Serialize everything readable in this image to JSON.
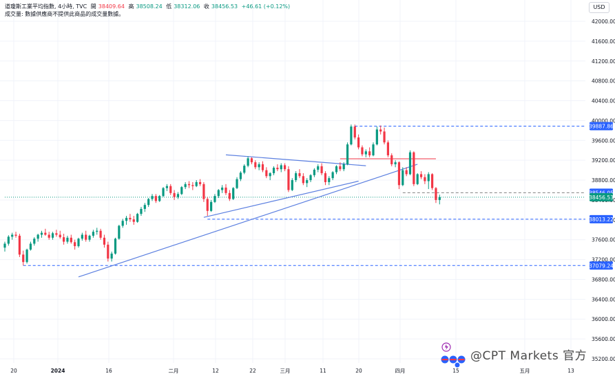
{
  "header": {
    "line1_prefix": "道瓊斯工業平均指數, 4小時, TVC",
    "open_label": "開",
    "open": "38409.64",
    "high_label": "高",
    "high": "38508.24",
    "low_label": "低",
    "low": "38312.06",
    "close_label": "收",
    "close": "38456.53",
    "change": "+46.61 (+0.12%)",
    "line2": "成交量: 數據供應商不提供此商品的成交量數據。"
  },
  "currency": "USD",
  "watermark": "@CPT Markets 官方",
  "colors": {
    "up": "#089981",
    "down": "#f23645",
    "trendline": "#5b7fe0",
    "level": "#2962ff",
    "resistance": "#f23645",
    "grid": "#f0f3fa",
    "axis_text": "#131722"
  },
  "chart_data": {
    "type": "candlestick",
    "y_axis": {
      "range": [
        35200,
        42200
      ],
      "ticks": [
        "42000.00",
        "41600.00",
        "41200.00",
        "40800.00",
        "40400.00",
        "40000.00",
        "39600.00",
        "39200.00",
        "38800.00",
        "38400.00",
        "38000.00",
        "37600.00",
        "37200.00",
        "36800.00",
        "36400.00",
        "36000.00",
        "35600.00",
        "35200.00"
      ]
    },
    "x_axis": {
      "ticks": [
        "20",
        "2024",
        "16",
        "二月",
        "12",
        "22",
        "三月",
        "11",
        "20",
        "四月",
        "15",
        "五月",
        "13"
      ]
    },
    "price_labels": [
      {
        "value": 39887.86,
        "text": "39887.86",
        "color": "#2962ff"
      },
      {
        "value": 38546.05,
        "text": "38546.05",
        "color": "#2962ff"
      },
      {
        "value": 38456.53,
        "text": "38456.53",
        "color": "#089981"
      },
      {
        "value": 38013.22,
        "text": "38013.22",
        "color": "#2962ff"
      },
      {
        "value": 37079.24,
        "text": "37079.24",
        "color": "#2962ff"
      }
    ],
    "horizontal_lines": [
      {
        "value": 39887.86,
        "style": "dashed",
        "color": "#2962ff",
        "from_index": 95
      },
      {
        "value": 38546.05,
        "style": "dashed",
        "color": "#808080",
        "from_index": 108
      },
      {
        "value": 38456.53,
        "style": "dotted",
        "color": "#089981",
        "from_index": 0
      },
      {
        "value": 38013.22,
        "style": "dashed",
        "color": "#2962ff",
        "from_index": 55
      },
      {
        "value": 37079.24,
        "style": "dashed",
        "color": "#2962ff",
        "from_index": 5
      },
      {
        "value": 39230,
        "style": "solid",
        "color": "#f23645",
        "from_index": 91,
        "to_index": 117
      }
    ],
    "trendlines": [
      {
        "from": [
          20,
          36850
        ],
        "to": [
          112,
          39120
        ],
        "color": "#5b7fe0"
      },
      {
        "from": [
          54,
          38050
        ],
        "to": [
          96,
          38780
        ],
        "color": "#5b7fe0"
      },
      {
        "from": [
          60,
          39310
        ],
        "to": [
          98,
          39090
        ],
        "color": "#5b7fe0"
      }
    ],
    "candles": [
      [
        37440,
        37560,
        37360,
        37520
      ],
      [
        37520,
        37690,
        37480,
        37660
      ],
      [
        37660,
        37740,
        37600,
        37700
      ],
      [
        37700,
        37760,
        37640,
        37680
      ],
      [
        37680,
        37720,
        37250,
        37300
      ],
      [
        37300,
        37380,
        37080,
        37150
      ],
      [
        37150,
        37420,
        37120,
        37400
      ],
      [
        37400,
        37560,
        37380,
        37520
      ],
      [
        37520,
        37650,
        37480,
        37620
      ],
      [
        37620,
        37720,
        37560,
        37700
      ],
      [
        37700,
        37780,
        37640,
        37740
      ],
      [
        37740,
        37820,
        37680,
        37700
      ],
      [
        37700,
        37760,
        37600,
        37640
      ],
      [
        37640,
        37760,
        37600,
        37730
      ],
      [
        37730,
        37800,
        37660,
        37700
      ],
      [
        37700,
        37780,
        37620,
        37650
      ],
      [
        37650,
        37720,
        37500,
        37560
      ],
      [
        37560,
        37680,
        37520,
        37640
      ],
      [
        37640,
        37700,
        37520,
        37550
      ],
      [
        37550,
        37600,
        37400,
        37470
      ],
      [
        37470,
        37640,
        37440,
        37620
      ],
      [
        37620,
        37740,
        37580,
        37700
      ],
      [
        37700,
        37780,
        37560,
        37600
      ],
      [
        37600,
        37700,
        37560,
        37680
      ],
      [
        37680,
        37800,
        37640,
        37760
      ],
      [
        37760,
        37840,
        37700,
        37780
      ],
      [
        37780,
        37820,
        37600,
        37640
      ],
      [
        37640,
        37700,
        37440,
        37500
      ],
      [
        37500,
        37560,
        37160,
        37220
      ],
      [
        37220,
        37360,
        37160,
        37320
      ],
      [
        37320,
        37640,
        37300,
        37620
      ],
      [
        37620,
        37900,
        37600,
        37880
      ],
      [
        37880,
        38020,
        37840,
        37980
      ],
      [
        37980,
        38080,
        37900,
        38040
      ],
      [
        38040,
        38120,
        37960,
        38010
      ],
      [
        38010,
        38080,
        37900,
        37960
      ],
      [
        37960,
        38140,
        37940,
        38120
      ],
      [
        38120,
        38260,
        38080,
        38220
      ],
      [
        38220,
        38340,
        38160,
        38300
      ],
      [
        38300,
        38440,
        38260,
        38420
      ],
      [
        38420,
        38520,
        38380,
        38480
      ],
      [
        38480,
        38520,
        38340,
        38380
      ],
      [
        38380,
        38500,
        38360,
        38480
      ],
      [
        38480,
        38660,
        38460,
        38640
      ],
      [
        38640,
        38720,
        38580,
        38680
      ],
      [
        38680,
        38720,
        38500,
        38540
      ],
      [
        38540,
        38600,
        38400,
        38460
      ],
      [
        38460,
        38560,
        38420,
        38520
      ],
      [
        38520,
        38680,
        38500,
        38660
      ],
      [
        38660,
        38760,
        38620,
        38720
      ],
      [
        38720,
        38780,
        38640,
        38700
      ],
      [
        38700,
        38760,
        38600,
        38680
      ],
      [
        38680,
        38800,
        38660,
        38760
      ],
      [
        38760,
        38820,
        38680,
        38720
      ],
      [
        38720,
        38760,
        38360,
        38420
      ],
      [
        38420,
        38460,
        38080,
        38180
      ],
      [
        38180,
        38400,
        38160,
        38360
      ],
      [
        38360,
        38520,
        38340,
        38480
      ],
      [
        38480,
        38620,
        38440,
        38600
      ],
      [
        38600,
        38700,
        38540,
        38650
      ],
      [
        38650,
        38720,
        38500,
        38540
      ],
      [
        38540,
        38600,
        38380,
        38420
      ],
      [
        38420,
        38660,
        38400,
        38640
      ],
      [
        38640,
        38860,
        38620,
        38820
      ],
      [
        38820,
        38980,
        38780,
        38950
      ],
      [
        38950,
        39120,
        38920,
        39090
      ],
      [
        39090,
        39280,
        39060,
        39240
      ],
      [
        39240,
        39260,
        39120,
        39160
      ],
      [
        39160,
        39200,
        39020,
        39060
      ],
      [
        39060,
        39160,
        39000,
        39120
      ],
      [
        39120,
        39180,
        38960,
        39000
      ],
      [
        39000,
        39060,
        38840,
        38880
      ],
      [
        38880,
        38960,
        38800,
        38940
      ],
      [
        38940,
        39080,
        38900,
        39050
      ],
      [
        39050,
        39120,
        38980,
        39020
      ],
      [
        39020,
        39140,
        38960,
        39100
      ],
      [
        39100,
        39140,
        38980,
        39020
      ],
      [
        39020,
        39080,
        38560,
        38600
      ],
      [
        38600,
        38840,
        38580,
        38800
      ],
      [
        38800,
        38980,
        38760,
        38940
      ],
      [
        38940,
        39020,
        38840,
        38880
      ],
      [
        38880,
        38940,
        38700,
        38740
      ],
      [
        38740,
        38840,
        38660,
        38800
      ],
      [
        38800,
        38920,
        38760,
        38900
      ],
      [
        38900,
        39040,
        38860,
        39010
      ],
      [
        39010,
        39120,
        38960,
        39080
      ],
      [
        39080,
        39140,
        38900,
        38940
      ],
      [
        38940,
        38980,
        38700,
        38760
      ],
      [
        38760,
        38880,
        38700,
        38840
      ],
      [
        38840,
        38980,
        38800,
        38960
      ],
      [
        38960,
        39100,
        38920,
        39080
      ],
      [
        39080,
        39160,
        38980,
        39020
      ],
      [
        39020,
        39160,
        38980,
        39120
      ],
      [
        39120,
        39560,
        39100,
        39520
      ],
      [
        39520,
        39920,
        39500,
        39880
      ],
      [
        39880,
        39920,
        39620,
        39660
      ],
      [
        39660,
        39720,
        39420,
        39460
      ],
      [
        39460,
        39500,
        39280,
        39320
      ],
      [
        39320,
        39420,
        39260,
        39380
      ],
      [
        39380,
        39460,
        39260,
        39300
      ],
      [
        39300,
        39560,
        39280,
        39520
      ],
      [
        39520,
        39880,
        39500,
        39820
      ],
      [
        39820,
        39900,
        39720,
        39780
      ],
      [
        39780,
        39860,
        39520,
        39560
      ],
      [
        39560,
        39600,
        39260,
        39300
      ],
      [
        39300,
        39340,
        39080,
        39120
      ],
      [
        39120,
        39200,
        39060,
        39160
      ],
      [
        39160,
        39180,
        38620,
        38700
      ],
      [
        38700,
        39060,
        38680,
        39000
      ],
      [
        39000,
        39060,
        38880,
        38920
      ],
      [
        38920,
        39400,
        38900,
        39360
      ],
      [
        39360,
        39380,
        38680,
        38720
      ],
      [
        38720,
        38940,
        38700,
        38920
      ],
      [
        38920,
        38980,
        38820,
        38860
      ],
      [
        38860,
        38920,
        38720,
        38780
      ],
      [
        38780,
        38960,
        38620,
        38920
      ],
      [
        38920,
        38940,
        38600,
        38640
      ],
      [
        38640,
        38660,
        38340,
        38400
      ],
      [
        38400,
        38508,
        38312,
        38456
      ]
    ]
  }
}
